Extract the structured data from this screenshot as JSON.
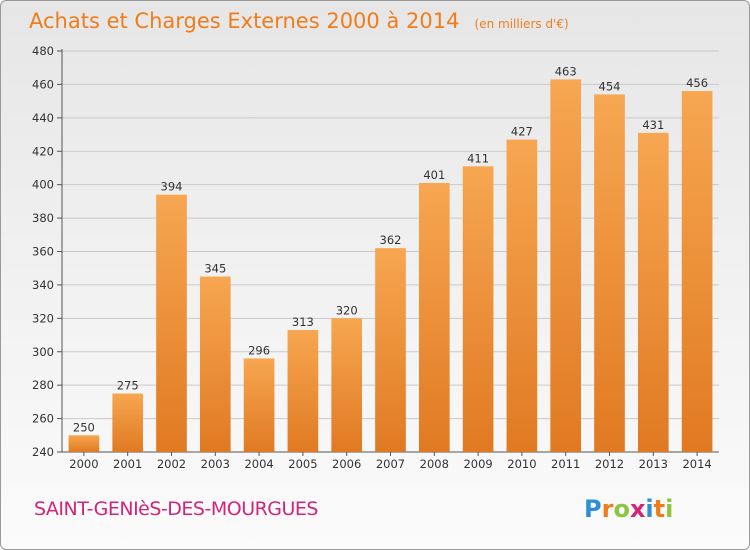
{
  "chart_data": {
    "type": "bar",
    "title": "Achats et Charges Externes 2000 à 2014",
    "subtitle": "(en milliers d'€)",
    "xlabel": "",
    "ylabel": "",
    "categories": [
      "2000",
      "2001",
      "2002",
      "2003",
      "2004",
      "2005",
      "2006",
      "2007",
      "2008",
      "2009",
      "2010",
      "2011",
      "2012",
      "2013",
      "2014"
    ],
    "values": [
      250,
      275,
      394,
      345,
      296,
      313,
      320,
      362,
      401,
      411,
      427,
      463,
      454,
      431,
      456
    ],
    "value_labels": [
      "250",
      "275",
      "394",
      "345",
      "296",
      "313",
      "320",
      "362",
      "401",
      "411",
      "427",
      "463",
      "454",
      "431",
      "456"
    ],
    "ylim": [
      240,
      480
    ],
    "yticks": [
      240,
      260,
      280,
      300,
      320,
      340,
      360,
      380,
      400,
      420,
      440,
      460,
      480
    ],
    "ytick_labels": [
      "240",
      "260",
      "280",
      "300",
      "320",
      "340",
      "360",
      "380",
      "400",
      "420",
      "440",
      "460",
      "480"
    ],
    "grid": true,
    "bar_color_top": "#f7a651",
    "bar_color_bottom": "#e07a22"
  },
  "footer": {
    "commune": "SAINT-GENIèS-DES-MOURGUES",
    "commune_color": "#d2257a",
    "logo_letters": [
      "P",
      "r",
      "o",
      "x",
      "i",
      "t",
      "i"
    ],
    "logo_colors": [
      "#2e8fd6",
      "#f07d1c",
      "#8cc63f",
      "#d2257a",
      "#2e8fd6",
      "#f07d1c",
      "#8cc63f"
    ]
  }
}
